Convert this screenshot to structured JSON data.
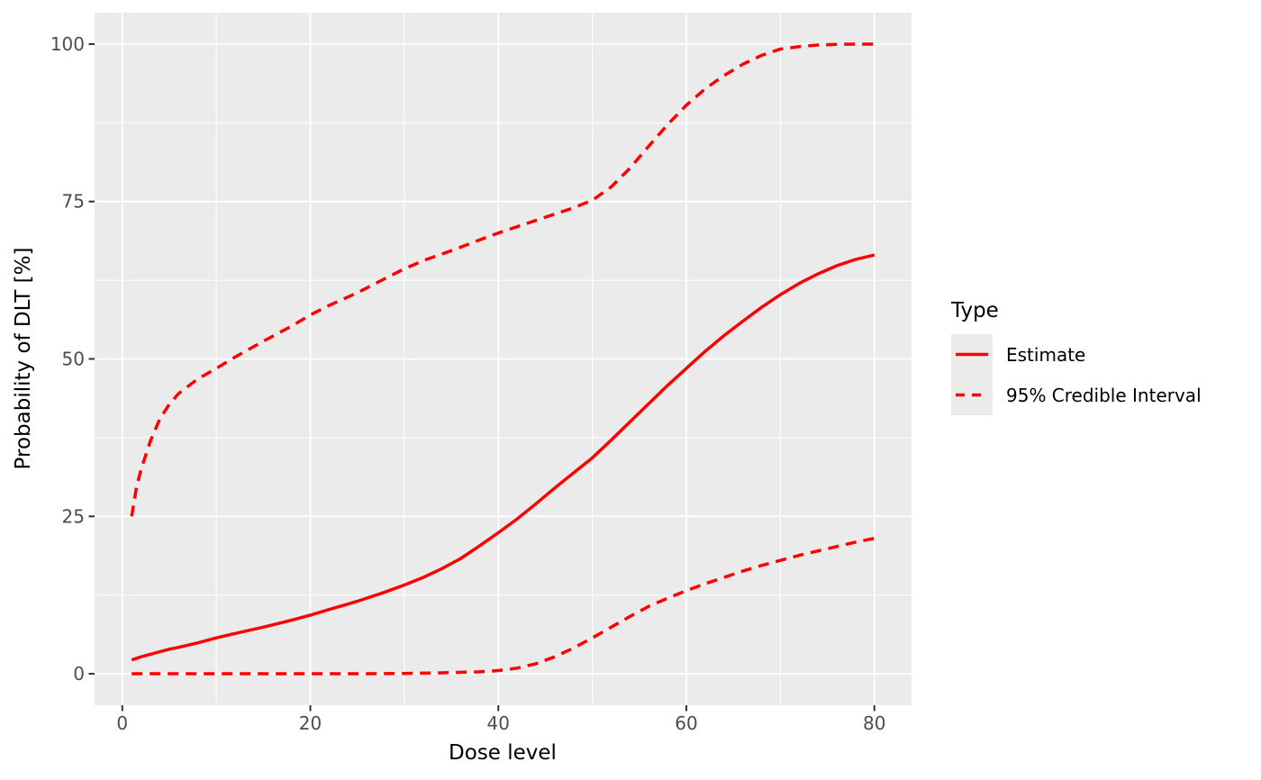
{
  "chart_data": {
    "type": "line",
    "title": "",
    "xlabel": "Dose level",
    "ylabel": "Probability of DLT [%]",
    "xlim": [
      -2.95,
      83.95
    ],
    "ylim": [
      -5,
      105
    ],
    "x_major_ticks": [
      0,
      20,
      40,
      60,
      80
    ],
    "y_major_ticks": [
      0,
      25,
      50,
      75,
      100
    ],
    "x_minor_ticks": [
      10,
      30,
      50,
      70
    ],
    "y_minor_ticks": [
      12.5,
      37.5,
      62.5,
      87.5
    ],
    "grid": "white major and minor gridlines on grey panel",
    "legend_position": "right",
    "legend": {
      "title": "Type",
      "items": [
        {
          "label": "Estimate",
          "line_style": "solid"
        },
        {
          "label": "95% Credible Interval",
          "line_style": "dashed"
        }
      ]
    },
    "series": [
      {
        "name": "Estimate",
        "style": "solid",
        "color": "#FF0000",
        "x": [
          1,
          2,
          3,
          4,
          5,
          6,
          8,
          10,
          12,
          15,
          18,
          20,
          22,
          25,
          28,
          30,
          32,
          34,
          36,
          38,
          40,
          42,
          44,
          46,
          48,
          50,
          52,
          54,
          56,
          58,
          60,
          62,
          64,
          66,
          68,
          70,
          72,
          74,
          76,
          78,
          80
        ],
        "y": [
          2.2,
          2.7,
          3.1,
          3.5,
          3.9,
          4.2,
          4.9,
          5.7,
          6.4,
          7.4,
          8.5,
          9.3,
          10.2,
          11.5,
          13.0,
          14.1,
          15.3,
          16.7,
          18.3,
          20.3,
          22.4,
          24.6,
          27.0,
          29.5,
          31.9,
          34.3,
          37.1,
          40.0,
          42.9,
          45.8,
          48.5,
          51.2,
          53.7,
          56.0,
          58.2,
          60.2,
          62.0,
          63.5,
          64.8,
          65.8,
          66.5
        ]
      },
      {
        "name": "95% Credible Interval (upper)",
        "style": "dashed",
        "color": "#FF0000",
        "x": [
          1,
          1.5,
          2,
          3,
          4,
          5,
          6,
          8,
          10,
          12,
          15,
          18,
          20,
          22,
          25,
          28,
          30,
          32,
          35,
          38,
          40,
          42,
          44,
          46,
          48,
          50,
          52,
          54,
          56,
          58,
          60,
          62,
          64,
          66,
          68,
          70,
          72,
          74,
          76,
          78,
          80
        ],
        "y": [
          25,
          29.5,
          32.5,
          37,
          40.5,
          42.8,
          44.5,
          46.8,
          48.5,
          50.3,
          52.8,
          55.2,
          57,
          58.5,
          60.5,
          62.8,
          64.3,
          65.6,
          67.2,
          68.9,
          70,
          71,
          72,
          73,
          74,
          75.2,
          77.3,
          80.3,
          83.8,
          87.2,
          90.3,
          92.9,
          95,
          96.8,
          98.2,
          99.2,
          99.6,
          99.85,
          99.95,
          100,
          100
        ]
      },
      {
        "name": "95% Credible Interval (lower)",
        "style": "dashed",
        "color": "#FF0000",
        "x": [
          1,
          5,
          10,
          15,
          20,
          25,
          30,
          34,
          38,
          40,
          42,
          44,
          46,
          48,
          50,
          52,
          54,
          56,
          58,
          60,
          62,
          64,
          66,
          68,
          70,
          72,
          74,
          76,
          78,
          80
        ],
        "y": [
          0,
          0,
          0,
          0,
          0,
          0,
          0.05,
          0.15,
          0.3,
          0.5,
          0.9,
          1.6,
          2.7,
          4.1,
          5.7,
          7.4,
          9.1,
          10.7,
          12.0,
          13.2,
          14.3,
          15.3,
          16.3,
          17.2,
          18.0,
          18.8,
          19.5,
          20.2,
          20.9,
          21.5
        ]
      }
    ]
  },
  "theme": {
    "background": "#FFFFFF",
    "panel_background": "#EBEBEB",
    "grid_color": "#FFFFFF",
    "tick_color": "#333333",
    "tick_label_color": "#4D4D4D",
    "text_color": "#000000",
    "line_color": "#FF0000"
  }
}
